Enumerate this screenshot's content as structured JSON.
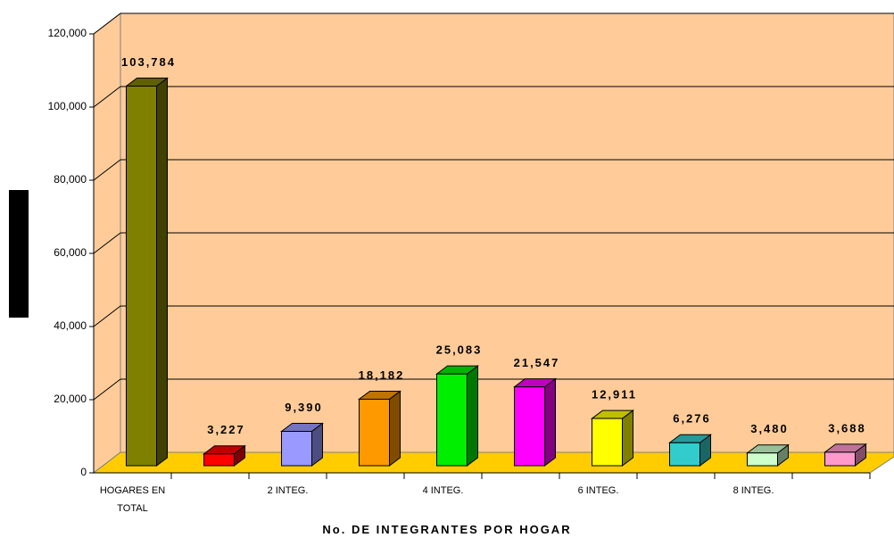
{
  "chart_data": {
    "type": "bar3d",
    "x_label": "No. DE INTEGRANTES POR HOGAR",
    "categories": [
      "HOGARES EN TOTAL",
      null,
      "2 INTEG.",
      null,
      "4 INTEG.",
      null,
      "6 INTEG.",
      null,
      "8 INTEG.",
      null
    ],
    "values": [
      103784,
      3227,
      9390,
      18182,
      25083,
      21547,
      12911,
      6276,
      3480,
      3688
    ],
    "value_labels": [
      "103,784",
      "3,227",
      "9,390",
      "18,182",
      "25,083",
      "21,547",
      "12,911",
      "6,276",
      "3,480",
      "3,688"
    ],
    "colors": [
      "#808000",
      "#ff0000",
      "#9999ff",
      "#ff9900",
      "#00ee00",
      "#ff00ff",
      "#ffff00",
      "#33cccc",
      "#ccffcc",
      "#ff99cc"
    ],
    "ylim": [
      0,
      120000
    ],
    "yticks": [
      0,
      {
        "value": 20000,
        "label": "20,000"
      },
      {
        "value": 40000,
        "label": "40,000"
      },
      {
        "value": 60000,
        "label": "60,000"
      },
      {
        "value": 80000,
        "label": "80,000"
      },
      {
        "value": 100000,
        "label": "100,000"
      },
      {
        "value": 120000,
        "label": "120,000"
      }
    ],
    "grid": true
  }
}
